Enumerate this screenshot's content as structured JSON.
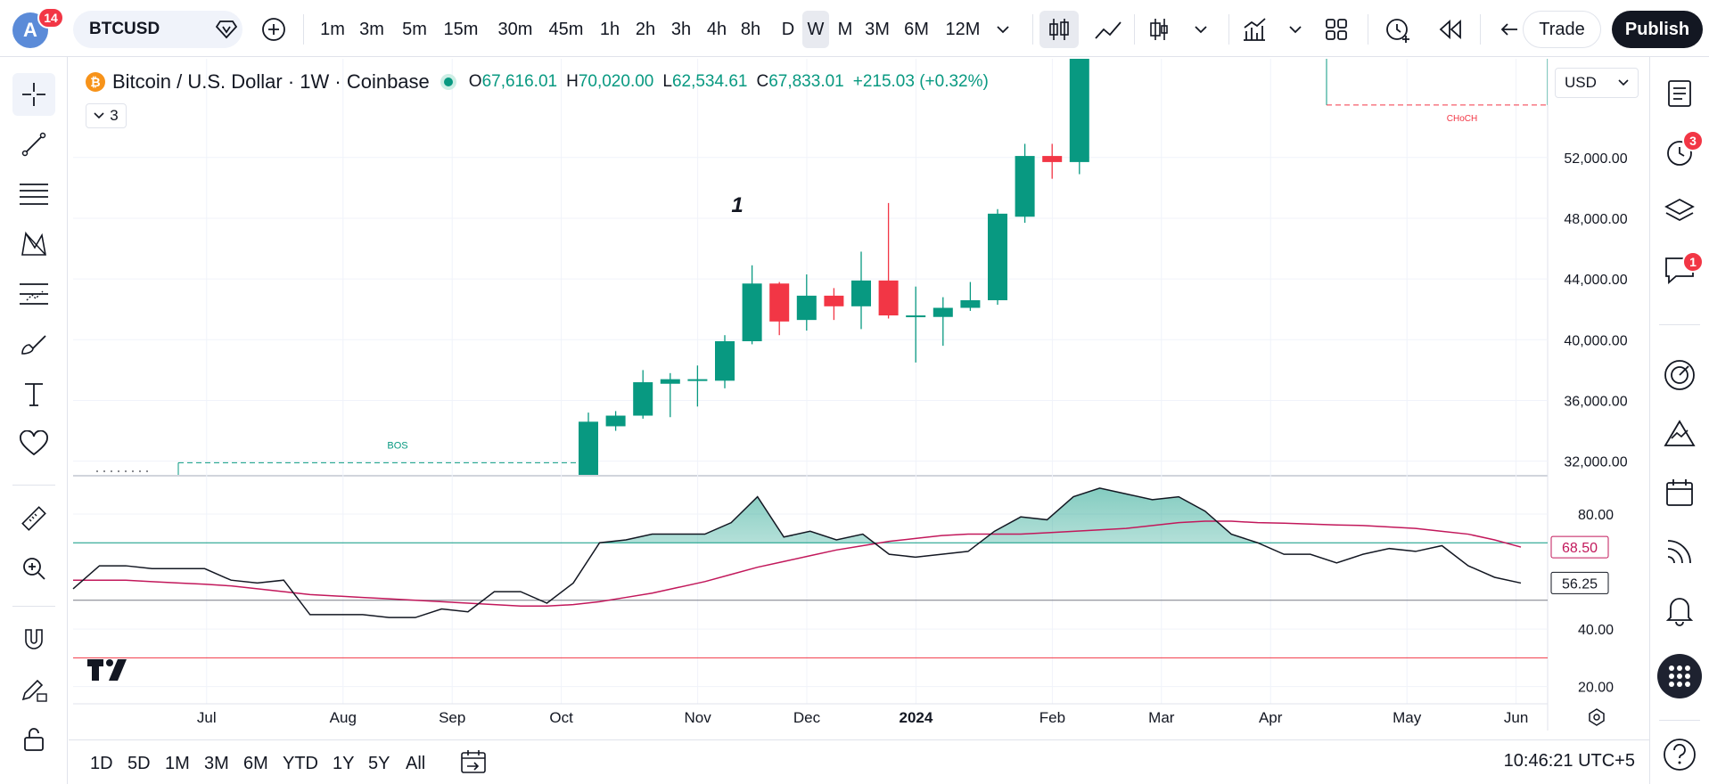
{
  "header": {
    "avatar_letter": "A",
    "notification_count": "14",
    "symbol": "BTCUSD",
    "timeframes": [
      "1m",
      "3m",
      "5m",
      "15m",
      "30m",
      "45m",
      "1h",
      "2h",
      "3h",
      "4h",
      "8h",
      "D",
      "W",
      "M",
      "3M",
      "6M",
      "12M"
    ],
    "active_timeframe": "W",
    "trade_label": "Trade",
    "publish_label": "Publish"
  },
  "legend": {
    "coin_glyph": "₿",
    "title": "Bitcoin / U.S. Dollar · 1W · Coinbase",
    "open_key": "O",
    "open": "67,616.01",
    "high_key": "H",
    "high": "70,020.00",
    "low_key": "L",
    "low": "62,534.61",
    "close_key": "C",
    "close": "67,833.01",
    "change": "+215.03 (+0.32%)",
    "collapse_count": "3"
  },
  "currency": "USD",
  "right_sidebar": {
    "alerts_badge": "3",
    "chats_badge": "1"
  },
  "colors": {
    "up": "#089981",
    "down": "#f23645",
    "rsi_line": "#131722",
    "rsi_ma": "#c2185b",
    "structure": "#089981",
    "choch": "#f23645"
  },
  "chart_data": [
    {
      "type": "candlestick",
      "interval": "1W",
      "price_axis": [
        52000,
        48000,
        44000,
        40000,
        36000,
        32000
      ],
      "price_axis_labels": [
        "52,000.00",
        "48,000.00",
        "44,000.00",
        "40,000.00",
        "36,000.00",
        "32,000.00"
      ],
      "ylim": [
        31100,
        58500
      ],
      "annotations": [
        {
          "text": "BOS",
          "price": 31900
        },
        {
          "text": "CHoCH",
          "price": 57800
        },
        {
          "text": "1",
          "price": 48200
        }
      ],
      "candles": [
        {
          "o": 30000,
          "h": 35200,
          "l": 29800,
          "c": 34600
        },
        {
          "o": 34300,
          "h": 35300,
          "l": 34000,
          "c": 35000
        },
        {
          "o": 35000,
          "h": 38000,
          "l": 34800,
          "c": 37200
        },
        {
          "o": 37100,
          "h": 37800,
          "l": 34900,
          "c": 37400
        },
        {
          "o": 37300,
          "h": 38300,
          "l": 35600,
          "c": 37400
        },
        {
          "o": 37300,
          "h": 40300,
          "l": 36800,
          "c": 39900
        },
        {
          "o": 39900,
          "h": 44900,
          "l": 39700,
          "c": 43700
        },
        {
          "o": 43700,
          "h": 43800,
          "l": 40300,
          "c": 41200
        },
        {
          "o": 41300,
          "h": 44300,
          "l": 40600,
          "c": 42900
        },
        {
          "o": 42900,
          "h": 43400,
          "l": 41300,
          "c": 42200
        },
        {
          "o": 42200,
          "h": 45800,
          "l": 40700,
          "c": 43900
        },
        {
          "o": 43900,
          "h": 49000,
          "l": 41400,
          "c": 41600
        },
        {
          "o": 41600,
          "h": 43500,
          "l": 38500,
          "c": 41600
        },
        {
          "o": 41500,
          "h": 42800,
          "l": 39600,
          "c": 42100
        },
        {
          "o": 42100,
          "h": 43800,
          "l": 41900,
          "c": 42600
        },
        {
          "o": 42600,
          "h": 48600,
          "l": 42300,
          "c": 48300
        },
        {
          "o": 48100,
          "h": 52900,
          "l": 47700,
          "c": 52100
        },
        {
          "o": 52100,
          "h": 52900,
          "l": 50600,
          "c": 51700
        },
        {
          "o": 51700,
          "h": 63000,
          "l": 50900,
          "c": 63000
        }
      ]
    },
    {
      "type": "line",
      "name": "RSI",
      "ylim": [
        14,
        93
      ],
      "y_axis": [
        80,
        40,
        20
      ],
      "y_axis_labels": [
        "80.00",
        "40.00",
        "20.00"
      ],
      "levels": [
        70,
        50,
        30
      ],
      "last_value": "56.25",
      "ma_last_value": "68.50",
      "rsi": [
        54,
        62,
        62,
        61,
        61,
        61,
        57,
        56,
        57,
        45,
        45,
        45,
        44,
        44,
        47,
        46,
        53,
        53,
        49,
        56,
        70,
        71,
        73,
        73,
        73,
        77,
        86,
        72,
        74,
        71,
        73,
        66,
        65,
        66,
        67,
        74,
        79,
        78,
        86,
        89,
        87,
        85,
        86,
        81,
        73,
        70,
        66,
        66,
        63,
        66,
        68,
        67,
        69,
        62,
        58,
        56
      ],
      "ma": [
        57,
        57,
        57,
        56.5,
        56,
        55.6,
        55,
        54,
        53,
        52,
        51.5,
        51,
        50.5,
        50,
        49.5,
        49,
        48.5,
        48,
        48,
        48.5,
        49.5,
        51,
        52.5,
        54.5,
        56.5,
        59,
        61.5,
        63.5,
        65.5,
        67.5,
        69,
        70.5,
        71.5,
        72.5,
        73,
        73,
        73,
        73.5,
        74,
        74.5,
        75,
        76,
        77,
        77.5,
        77.5,
        77,
        76.8,
        76.5,
        76.2,
        76,
        75.5,
        75,
        74,
        73,
        71,
        68.5
      ]
    }
  ],
  "time_axis": [
    {
      "label": "Jul",
      "i": 3
    },
    {
      "label": "Aug",
      "i": 8
    },
    {
      "label": "Sep",
      "i": 12
    },
    {
      "label": "Oct",
      "i": 16
    },
    {
      "label": "Nov",
      "i": 21
    },
    {
      "label": "Dec",
      "i": 25
    },
    {
      "label": "2024",
      "i": 29
    },
    {
      "label": "Feb",
      "i": 34
    },
    {
      "label": "Mar",
      "i": 38
    },
    {
      "label": "Apr",
      "i": 42
    },
    {
      "label": "May",
      "i": 47
    },
    {
      "label": "Jun",
      "i": 51
    }
  ],
  "ranges": [
    "1D",
    "5D",
    "1M",
    "3M",
    "6M",
    "YTD",
    "1Y",
    "5Y",
    "All"
  ],
  "clock": "10:46:21 UTC+5"
}
